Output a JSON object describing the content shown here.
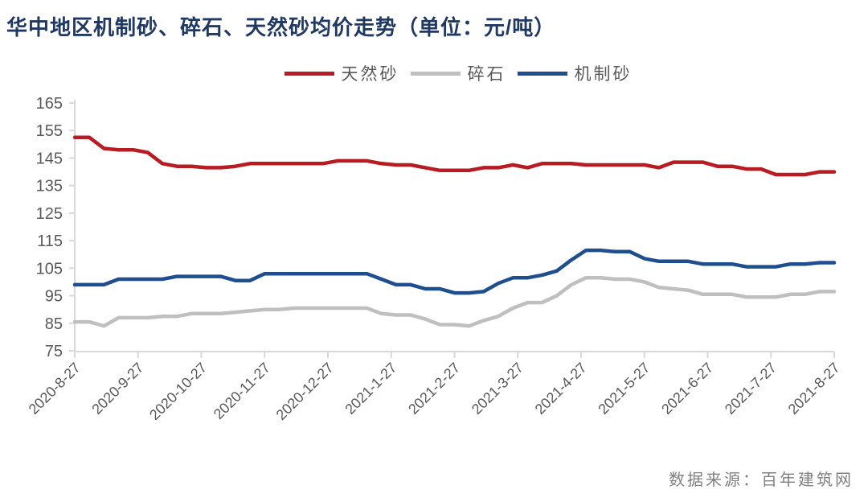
{
  "title": "华中地区机制砂、碎石、天然砂均价走势（单位：元/吨）",
  "title_color": "#1F3864",
  "source_note": "数据来源：百年建筑网",
  "source_note_color": "#808080",
  "axis": {
    "line_color": "#D9D9D9",
    "label_color": "#595959"
  },
  "chart_data": {
    "type": "line",
    "title": "华中地区机制砂、碎石、天然砂均价走势（单位：元/吨）",
    "ylim": [
      75,
      165
    ],
    "y_ticks": [
      75,
      85,
      95,
      105,
      115,
      125,
      135,
      145,
      155,
      165
    ],
    "x_tick_labels": [
      "2020-8-27",
      "2020-9-27",
      "2020-10-27",
      "2020-11-27",
      "2020-12-27",
      "2021-1-27",
      "2021-2-27",
      "2021-3-27",
      "2021-4-27",
      "2021-5-27",
      "2021-6-27",
      "2021-7-27",
      "2021-8-27"
    ],
    "x_unit": "weekly",
    "grid": false,
    "legend_position": "top",
    "series": [
      {
        "name": "天然砂",
        "color": "#B81C22",
        "values": [
          152.5,
          152.5,
          148.5,
          148,
          148,
          147,
          143,
          142,
          142,
          141.5,
          141.5,
          142,
          143,
          143,
          143,
          143,
          143,
          143,
          144,
          144,
          144,
          143,
          142.5,
          142.5,
          141.5,
          140.5,
          140.5,
          140.5,
          141.5,
          141.5,
          142.5,
          141.5,
          143,
          143,
          143,
          142.5,
          142.5,
          142.5,
          142.5,
          142.5,
          141.5,
          143.5,
          143.5,
          143.5,
          142,
          142,
          141,
          141,
          139,
          139,
          139,
          140,
          140
        ]
      },
      {
        "name": "碎石",
        "color": "#BFBFBF",
        "values": [
          85.5,
          85.5,
          84,
          87,
          87,
          87,
          87.5,
          87.5,
          88.5,
          88.5,
          88.5,
          89,
          89.5,
          90,
          90,
          90.5,
          90.5,
          90.5,
          90.5,
          90.5,
          90.5,
          88.5,
          88,
          88,
          86.5,
          84.5,
          84.5,
          84,
          86,
          87.5,
          90.5,
          92.5,
          92.5,
          95,
          99,
          101.5,
          101.5,
          101,
          101,
          100,
          98,
          97.5,
          97,
          95.5,
          95.5,
          95.5,
          94.5,
          94.5,
          94.5,
          95.5,
          95.5,
          96.5,
          96.5
        ]
      },
      {
        "name": "机制砂",
        "color": "#1F4E8F",
        "values": [
          99,
          99,
          99,
          101,
          101,
          101,
          101,
          102,
          102,
          102,
          102,
          100.5,
          100.5,
          103,
          103,
          103,
          103,
          103,
          103,
          103,
          103,
          101,
          99,
          99,
          97.5,
          97.5,
          96,
          96,
          96.5,
          99.5,
          101.5,
          101.5,
          102.5,
          104,
          108,
          111.5,
          111.5,
          111,
          111,
          108.5,
          107.5,
          107.5,
          107.5,
          106.5,
          106.5,
          106.5,
          105.5,
          105.5,
          105.5,
          106.5,
          106.5,
          107,
          107
        ]
      }
    ]
  }
}
